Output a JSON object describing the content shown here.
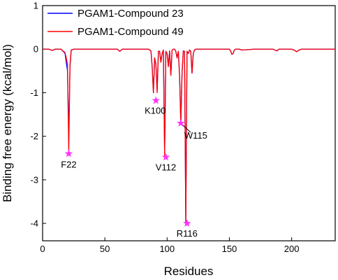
{
  "chart_data": {
    "type": "line",
    "xlabel": "Residues",
    "ylabel": "Binding free energy (kcal/mol)",
    "xlim": [
      0,
      235
    ],
    "ylim": [
      -4.4,
      1
    ],
    "xticks": [
      0,
      50,
      100,
      150,
      200
    ],
    "yticks": [
      1,
      0,
      -1,
      -2,
      -3,
      -4
    ],
    "grid": false,
    "legend_position": "top-left",
    "series": [
      {
        "name": "PGAM1-Compound 23",
        "color": "#0000ff",
        "x": [
          0,
          5,
          8,
          10,
          12,
          15,
          16,
          17,
          18,
          19,
          20,
          21,
          22,
          23,
          25,
          40,
          55,
          60,
          62,
          64,
          70,
          85,
          87,
          88,
          89,
          90,
          91,
          92,
          93,
          94,
          95,
          96,
          97,
          98,
          99,
          100,
          101,
          102,
          103,
          104,
          105,
          106,
          107,
          108,
          109,
          110,
          111,
          112,
          113,
          114,
          115,
          116,
          117,
          118,
          119,
          120,
          121,
          122,
          123,
          125,
          130,
          140,
          150,
          151,
          152,
          153,
          154,
          155,
          158,
          160,
          170,
          180,
          185,
          188,
          190,
          195,
          200,
          202,
          204,
          206,
          208,
          210,
          220,
          235
        ],
        "y": [
          0,
          0,
          -0.03,
          0,
          0,
          0,
          -0.04,
          -0.06,
          -0.1,
          -0.3,
          -0.5,
          -2.0,
          -0.4,
          -0.02,
          0,
          0,
          0,
          0,
          -0.05,
          0,
          0,
          0,
          -0.04,
          -0.4,
          -1.0,
          -0.2,
          -0.35,
          -0.95,
          -0.05,
          -0.05,
          -0.3,
          -0.1,
          -0.02,
          -2.4,
          -0.05,
          -0.1,
          -0.4,
          -0.04,
          -0.6,
          -0.02,
          0,
          0,
          -0.05,
          -0.2,
          -0.05,
          -0.6,
          -1.7,
          -0.55,
          -0.04,
          -0.05,
          -4.0,
          -0.05,
          -0.1,
          -0.02,
          -0.05,
          -0.55,
          -0.1,
          -0.02,
          0,
          0,
          0,
          0,
          0,
          -0.04,
          -0.12,
          -0.1,
          -0.02,
          0,
          0,
          -0.02,
          0,
          0,
          0,
          -0.04,
          0,
          0,
          0,
          -0.02,
          -0.06,
          -0.02,
          0,
          0,
          0,
          0
        ]
      },
      {
        "name": "PGAM1-Compound 49",
        "color": "#ff0000",
        "x": [
          0,
          5,
          8,
          10,
          12,
          15,
          16,
          17,
          18,
          19,
          20,
          21,
          22,
          23,
          25,
          40,
          55,
          60,
          62,
          64,
          70,
          85,
          87,
          88,
          89,
          90,
          91,
          92,
          93,
          94,
          95,
          96,
          97,
          98,
          99,
          100,
          101,
          102,
          103,
          104,
          105,
          106,
          107,
          108,
          109,
          110,
          111,
          112,
          113,
          114,
          115,
          116,
          117,
          118,
          119,
          120,
          121,
          122,
          123,
          125,
          130,
          140,
          150,
          151,
          152,
          153,
          154,
          155,
          158,
          160,
          170,
          180,
          185,
          188,
          190,
          195,
          200,
          202,
          204,
          206,
          208,
          210,
          220,
          235
        ],
        "y": [
          0,
          0,
          -0.03,
          0,
          0,
          0,
          -0.04,
          -0.05,
          -0.08,
          -0.2,
          -0.35,
          -2.4,
          -0.35,
          -0.02,
          0,
          0,
          0,
          0,
          -0.05,
          0,
          0,
          0,
          -0.04,
          -0.4,
          -1.0,
          -0.2,
          -0.35,
          -1.0,
          -0.05,
          -0.05,
          -0.3,
          -0.1,
          -0.02,
          -2.45,
          -0.05,
          -0.1,
          -0.4,
          -0.04,
          -0.6,
          -0.02,
          0,
          0,
          -0.05,
          -0.2,
          -0.05,
          -0.6,
          -1.7,
          -0.55,
          -0.04,
          -0.05,
          -4.0,
          -0.05,
          -0.1,
          -0.02,
          -0.05,
          -0.55,
          -0.1,
          -0.02,
          0,
          0,
          0,
          0,
          0,
          -0.04,
          -0.12,
          -0.1,
          -0.02,
          0,
          0,
          -0.02,
          0,
          0,
          0,
          -0.04,
          0,
          0,
          0,
          -0.02,
          -0.06,
          -0.02,
          0,
          0,
          0,
          0
        ]
      }
    ],
    "annotations": [
      {
        "label": "F22",
        "x": 21,
        "y": -2.4
      },
      {
        "label": "K100",
        "x": 91,
        "y": -1.18
      },
      {
        "label": "V112",
        "x": 99,
        "y": -2.48
      },
      {
        "label": "W115",
        "x": 111,
        "y": -1.7
      },
      {
        "label": "R116",
        "x": 116,
        "y": -4.0
      }
    ],
    "marker_color": "#ff33ff"
  }
}
